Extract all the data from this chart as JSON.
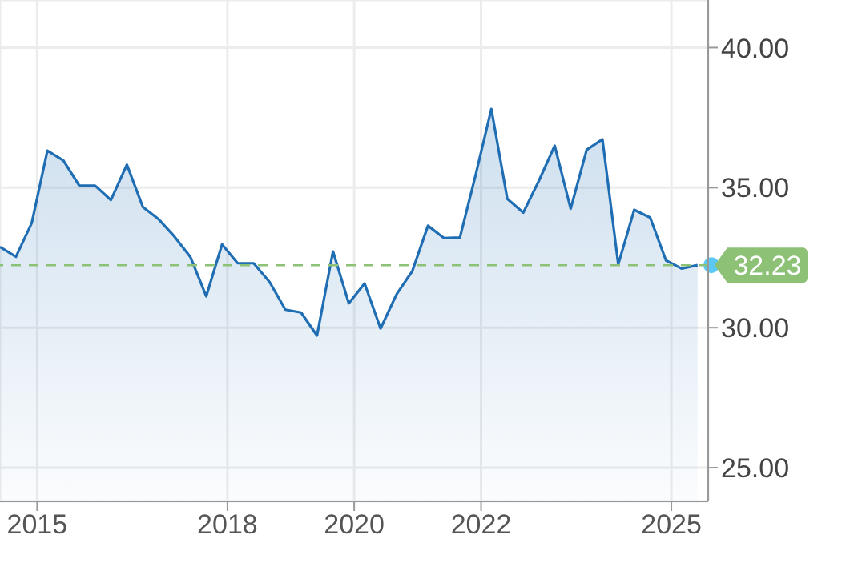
{
  "chart_data": {
    "type": "area",
    "x": [
      "2014-06",
      "2014-09",
      "2014-12",
      "2015-03",
      "2015-06",
      "2015-09",
      "2015-12",
      "2016-03",
      "2016-06",
      "2016-09",
      "2016-12",
      "2017-03",
      "2017-06",
      "2017-09",
      "2017-12",
      "2018-03",
      "2018-06",
      "2018-09",
      "2018-12",
      "2019-03",
      "2019-06",
      "2019-09",
      "2019-12",
      "2020-03",
      "2020-06",
      "2020-09",
      "2020-12",
      "2021-03",
      "2021-06",
      "2021-09",
      "2021-12",
      "2022-03",
      "2022-06",
      "2022-09",
      "2022-12",
      "2023-03",
      "2023-06",
      "2023-09",
      "2023-12",
      "2024-03",
      "2024-06",
      "2024-09",
      "2024-12",
      "2025-03",
      "2025-06"
    ],
    "series": [
      {
        "color": "#1f6db3",
        "values": [
          32.88,
          32.53,
          33.74,
          36.32,
          35.97,
          35.07,
          35.07,
          34.56,
          35.82,
          34.31,
          33.87,
          33.26,
          32.53,
          31.12,
          32.97,
          32.3,
          32.3,
          31.63,
          30.64,
          30.54,
          29.72,
          32.72,
          30.87,
          31.58,
          29.97,
          31.19,
          32.02,
          33.64,
          33.2,
          33.22,
          35.46,
          37.81,
          34.6,
          34.11,
          35.26,
          36.5,
          34.25,
          36.35,
          36.73,
          32.26,
          34.21,
          33.93,
          32.4,
          32.11,
          32.23
        ]
      }
    ],
    "xlim": [
      "2014-06",
      "2025-08"
    ],
    "xticks": [
      {
        "value": "2015-01",
        "label": "2015"
      },
      {
        "value": "2018-01",
        "label": "2018"
      },
      {
        "value": "2020-01",
        "label": "2020"
      },
      {
        "value": "2022-01",
        "label": "2022"
      },
      {
        "value": "2025-01",
        "label": "2025"
      }
    ],
    "ylim": [
      23.8,
      41.7
    ],
    "yticks": [
      {
        "value": 25,
        "label": "25.00"
      },
      {
        "value": 30,
        "label": "30.00"
      },
      {
        "value": 35,
        "label": "35.00"
      },
      {
        "value": 40,
        "label": "40.00"
      }
    ],
    "ref_lines": [
      {
        "axis": "y",
        "value": 32.23,
        "label": "32.23",
        "color": "#8cc176",
        "line_style": "dashed"
      }
    ],
    "grid": true,
    "marker": "none"
  }
}
